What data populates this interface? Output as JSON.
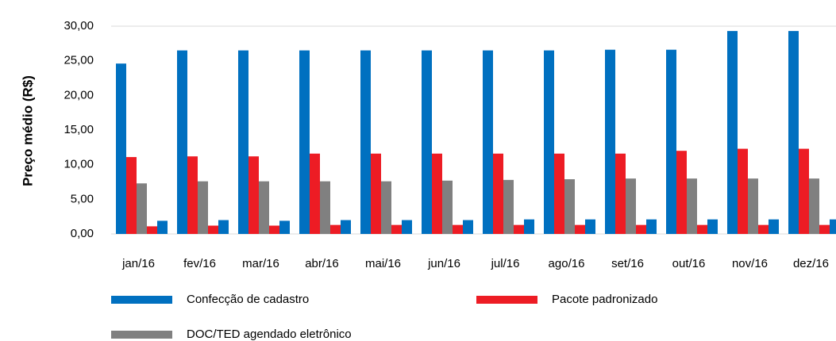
{
  "chart_data": {
    "type": "bar",
    "y_label": "Preço médio (R$)",
    "categories": [
      "jan/16",
      "fev/16",
      "mar/16",
      "abr/16",
      "mai/16",
      "jun/16",
      "jul/16",
      "ago/16",
      "set/16",
      "out/16",
      "nov/16",
      "dez/16"
    ],
    "series": [
      {
        "name": "Confecção de cadastro",
        "color": "#0070c0",
        "values": [
          24.6,
          26.5,
          26.5,
          26.5,
          26.5,
          26.5,
          26.5,
          26.5,
          26.6,
          26.6,
          29.3,
          29.3
        ]
      },
      {
        "name": "Pacote padronizado",
        "color": "#ed1c24",
        "values": [
          11.1,
          11.2,
          11.2,
          11.6,
          11.6,
          11.6,
          11.6,
          11.6,
          11.6,
          12.0,
          12.3,
          12.3
        ]
      },
      {
        "name": "DOC/TED agendado eletrônico",
        "color": "#808080",
        "values": [
          7.3,
          7.6,
          7.6,
          7.6,
          7.6,
          7.7,
          7.8,
          7.9,
          8.0,
          8.0,
          8.0,
          8.0
        ]
      },
      {
        "color": "#ed1c24",
        "values": [
          1.1,
          1.2,
          1.2,
          1.3,
          1.3,
          1.3,
          1.3,
          1.3,
          1.3,
          1.3,
          1.3,
          1.3
        ]
      },
      {
        "color": "#0070c0",
        "values": [
          1.9,
          2.0,
          1.9,
          2.0,
          2.0,
          2.0,
          2.1,
          2.1,
          2.1,
          2.1,
          2.1,
          2.1
        ]
      }
    ],
    "ylim": [
      0,
      30
    ],
    "yticks": [
      {
        "value": 0,
        "label": "0,00"
      },
      {
        "value": 5,
        "label": "5,00"
      },
      {
        "value": 10,
        "label": "10,00"
      },
      {
        "value": 15,
        "label": "15,00"
      },
      {
        "value": 20,
        "label": "20,00"
      },
      {
        "value": 25,
        "label": "25,00"
      },
      {
        "value": 30,
        "label": "30,00"
      }
    ],
    "grid": false
  }
}
